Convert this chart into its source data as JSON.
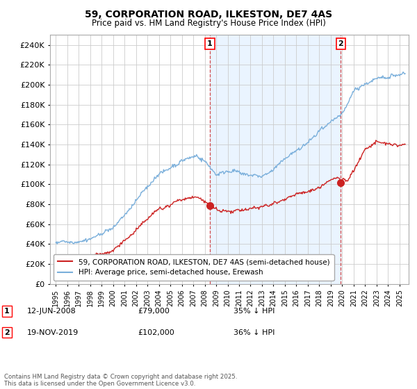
{
  "title": "59, CORPORATION ROAD, ILKESTON, DE7 4AS",
  "subtitle": "Price paid vs. HM Land Registry's House Price Index (HPI)",
  "ylim": [
    0,
    250000
  ],
  "yticks": [
    0,
    20000,
    40000,
    60000,
    80000,
    100000,
    120000,
    140000,
    160000,
    180000,
    200000,
    220000,
    240000
  ],
  "xlim_left": 1994.5,
  "xlim_right": 2025.8,
  "hpi_color": "#7aafdb",
  "hpi_fill_color": "#ddeeff",
  "price_color": "#cc2222",
  "sale1_x": 2008.45,
  "sale1_y": 79000,
  "sale2_x": 2019.87,
  "sale2_y": 102000,
  "sale1_date": "12-JUN-2008",
  "sale1_price": "£79,000",
  "sale1_hpi_pct": "35% ↓ HPI",
  "sale2_date": "19-NOV-2019",
  "sale2_price": "£102,000",
  "sale2_hpi_pct": "36% ↓ HPI",
  "legend_line1": "59, CORPORATION ROAD, ILKESTON, DE7 4AS (semi-detached house)",
  "legend_line2": "HPI: Average price, semi-detached house, Erewash",
  "footer": "Contains HM Land Registry data © Crown copyright and database right 2025.\nThis data is licensed under the Open Government Licence v3.0.",
  "background_color": "#ffffff",
  "grid_color": "#cccccc",
  "fig_width": 6.0,
  "fig_height": 5.6,
  "dpi": 100
}
